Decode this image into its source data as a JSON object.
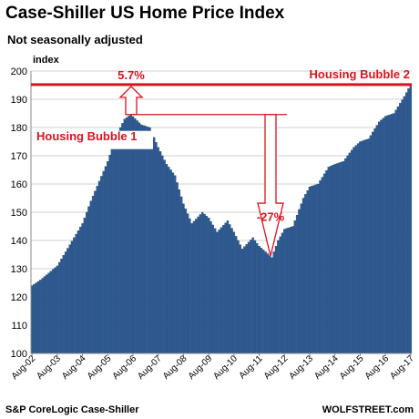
{
  "header": {
    "title": "Case-Shiller US Home Price Index",
    "subtitle": "Not seasonally adjusted"
  },
  "footer": {
    "source": "S&P CoreLogic Case-Shiller",
    "brand": "WOLFSTREET.com"
  },
  "colors": {
    "bar": "#2e5b94",
    "bar_edge": "#1b3d6b",
    "annotation": "#d9141e"
  },
  "chart_data": {
    "type": "bar",
    "title": "Case-Shiller US Home Price Index",
    "subtitle": "Not seasonally adjusted",
    "xlabel": "",
    "ylabel": "index",
    "ylim": [
      100,
      200
    ],
    "yticks": [
      100,
      110,
      120,
      130,
      140,
      150,
      160,
      170,
      180,
      190,
      200
    ],
    "xtick_labels": [
      "Aug-02",
      "Aug-03",
      "Aug-04",
      "Aug-05",
      "Aug-06",
      "Aug-07",
      "Aug-08",
      "Aug-09",
      "Aug-10",
      "Aug-11",
      "Aug-12",
      "Aug-13",
      "Aug-14",
      "Aug-15",
      "Aug-16",
      "Aug-17"
    ],
    "grid": true,
    "anchors": [
      [
        "2002-08",
        124
      ],
      [
        "2002-12",
        126
      ],
      [
        "2003-08",
        131
      ],
      [
        "2003-12",
        136
      ],
      [
        "2004-08",
        146
      ],
      [
        "2004-12",
        154
      ],
      [
        "2005-08",
        168
      ],
      [
        "2005-12",
        177
      ],
      [
        "2006-04",
        183
      ],
      [
        "2006-07",
        184.6
      ],
      [
        "2006-12",
        181
      ],
      [
        "2007-04",
        180
      ],
      [
        "2007-08",
        173
      ],
      [
        "2007-12",
        167
      ],
      [
        "2008-04",
        163
      ],
      [
        "2008-08",
        153
      ],
      [
        "2008-12",
        146
      ],
      [
        "2009-05",
        150
      ],
      [
        "2009-08",
        148
      ],
      [
        "2009-12",
        143
      ],
      [
        "2010-05",
        147
      ],
      [
        "2010-08",
        143
      ],
      [
        "2010-12",
        137
      ],
      [
        "2011-05",
        141
      ],
      [
        "2011-08",
        138
      ],
      [
        "2012-02",
        134
      ],
      [
        "2012-05",
        140
      ],
      [
        "2012-08",
        144
      ],
      [
        "2012-12",
        145
      ],
      [
        "2013-05",
        155
      ],
      [
        "2013-08",
        159
      ],
      [
        "2013-12",
        160
      ],
      [
        "2014-05",
        166
      ],
      [
        "2014-08",
        167
      ],
      [
        "2014-12",
        168
      ],
      [
        "2015-05",
        173
      ],
      [
        "2015-08",
        175
      ],
      [
        "2015-12",
        176
      ],
      [
        "2016-05",
        182
      ],
      [
        "2016-08",
        184
      ],
      [
        "2016-12",
        185
      ],
      [
        "2017-05",
        191
      ],
      [
        "2017-08",
        195.2
      ]
    ],
    "annotations": {
      "pct_up": "5.7%",
      "bubble2": "Housing Bubble 2",
      "bubble1": "Housing Bubble 1",
      "pct_down": "-27%",
      "peak_level": 195.2,
      "prior_peak_level": 184.6
    }
  }
}
